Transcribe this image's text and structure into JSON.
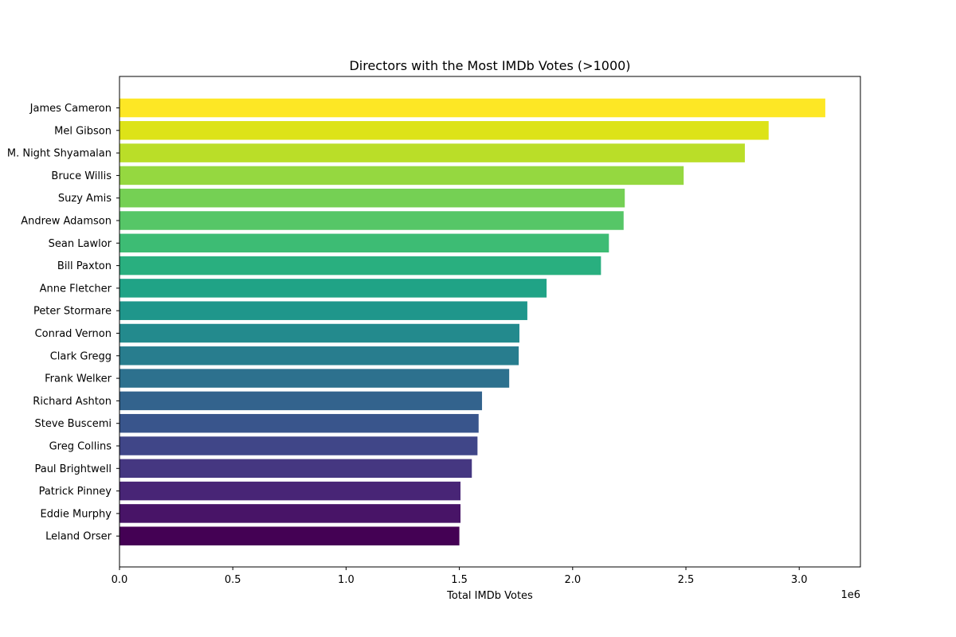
{
  "chart_data": {
    "type": "bar",
    "orientation": "horizontal",
    "title": "Directors with the Most IMDb Votes (>1000)",
    "xlabel": "Total IMDb Votes",
    "ylabel": "",
    "x_offset_label": "1e6",
    "x_scale": 1000000,
    "xlim": [
      0,
      3270000
    ],
    "x_ticks": [
      0,
      500000,
      1000000,
      1500000,
      2000000,
      2500000,
      3000000
    ],
    "x_tick_labels": [
      "0.0",
      "0.5",
      "1.0",
      "1.5",
      "2.0",
      "2.5",
      "3.0"
    ],
    "grid": false,
    "legend": "none",
    "colormap": "viridis",
    "categories": [
      "James Cameron",
      "Mel Gibson",
      "M. Night Shyamalan",
      "Bruce Willis",
      "Suzy Amis",
      "Andrew Adamson",
      "Sean Lawlor",
      "Bill Paxton",
      "Anne Fletcher",
      "Peter Stormare",
      "Conrad Vernon",
      "Clark Gregg",
      "Frank Welker",
      "Richard Ashton",
      "Steve Buscemi",
      "Greg Collins",
      "Paul Brightwell",
      "Patrick Pinney",
      "Eddie Murphy",
      "Leland Orser"
    ],
    "values": [
      3115000,
      2865000,
      2760000,
      2490000,
      2230000,
      2225000,
      2160000,
      2125000,
      1885000,
      1800000,
      1765000,
      1762000,
      1720000,
      1600000,
      1585000,
      1580000,
      1555000,
      1505000,
      1505000,
      1500000
    ],
    "colors": [
      "#fde725",
      "#dde318",
      "#bade28",
      "#95d840",
      "#75d054",
      "#56c667",
      "#3dbc74",
      "#29af7f",
      "#20a386",
      "#1f968b",
      "#238a8d",
      "#287d8e",
      "#2d718e",
      "#33638d",
      "#39558c",
      "#404688",
      "#453781",
      "#482576",
      "#481467",
      "#440154"
    ]
  }
}
